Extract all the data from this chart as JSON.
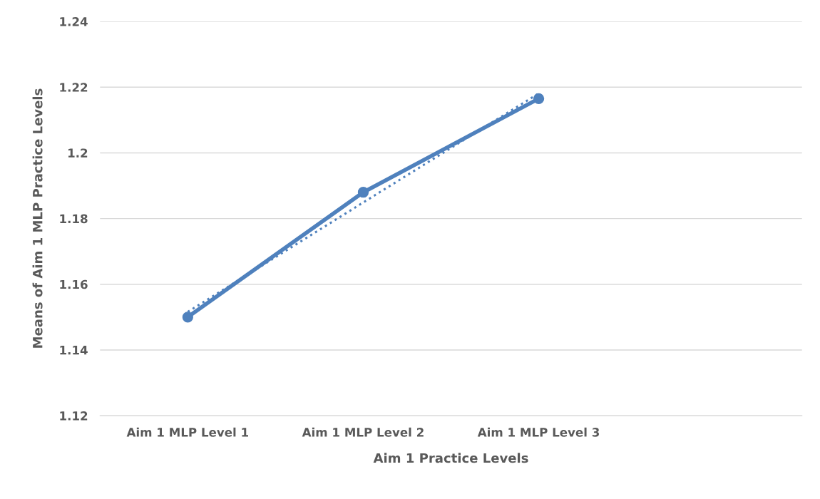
{
  "chart_data": {
    "type": "line",
    "xlabel": "Aim 1 Practice Levels",
    "ylabel": "Means of Aim 1 MLP Practice Levels",
    "categories": [
      "Aim 1 MLP Level 1",
      "Aim 1 MLP Level 2",
      "Aim 1 MLP Level 3",
      null
    ],
    "series": [
      {
        "color": "#4f81bd",
        "values": [
          1.15,
          1.188,
          1.2165,
          null
        ],
        "marker": "circle",
        "line_style": "solid"
      },
      {
        "type": "line",
        "color": "#4f81bd",
        "values": [
          1.1516,
          1.1849,
          1.2181,
          null
        ],
        "marker": "none",
        "line_style": "dotted"
      }
    ],
    "ylim": [
      1.12,
      1.24
    ],
    "yticks": [
      1.12,
      1.14,
      1.16,
      1.18,
      1.2,
      1.22,
      1.24
    ],
    "grid": "y",
    "legend": false
  }
}
